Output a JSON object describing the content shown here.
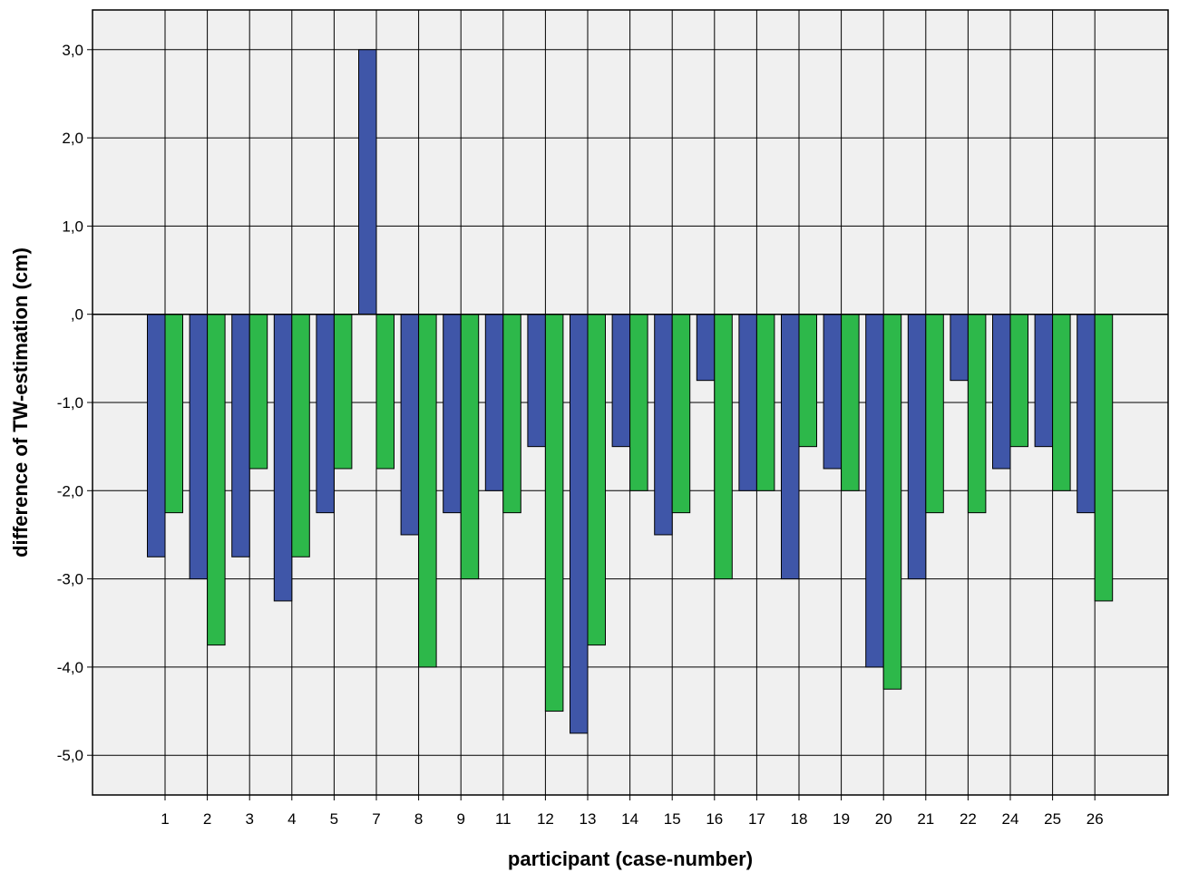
{
  "chart_data": {
    "type": "bar",
    "xlabel": "participant (case-number)",
    "ylabel": "difference of TW-estimation (cm)",
    "categories": [
      "1",
      "2",
      "3",
      "4",
      "5",
      "7",
      "8",
      "9",
      "11",
      "12",
      "13",
      "14",
      "15",
      "16",
      "17",
      "18",
      "19",
      "20",
      "21",
      "22",
      "24",
      "25",
      "26"
    ],
    "series": [
      {
        "color": "#3f56a8",
        "values": [
          -2.75,
          -3.0,
          -2.75,
          -3.25,
          -2.25,
          3.0,
          -2.5,
          -2.25,
          -2.0,
          -1.5,
          -4.75,
          -1.5,
          -2.5,
          -0.75,
          -2.0,
          -3.0,
          -1.75,
          -4.0,
          -3.0,
          -0.75,
          -1.75,
          -1.5,
          -2.25
        ]
      },
      {
        "color": "#2db84a",
        "values": [
          -2.25,
          -3.75,
          -1.75,
          -2.75,
          -1.75,
          -1.75,
          -4.0,
          -3.0,
          -2.25,
          -4.5,
          -3.75,
          -2.0,
          -2.25,
          -3.0,
          -2.0,
          -1.5,
          -2.0,
          -4.25,
          -2.25,
          -2.25,
          -1.5,
          -2.0,
          -3.25
        ]
      }
    ],
    "ylim": [
      -5.45,
      3.45
    ],
    "yticks": [
      3.0,
      2.0,
      1.0,
      0.0,
      -1.0,
      -2.0,
      -3.0,
      -4.0,
      -5.0
    ],
    "ytick_labels": [
      "3,0",
      "2,0",
      "1,0",
      ",0",
      "-1,0",
      "-2,0",
      "-3,0",
      "-4,0",
      "-5,0"
    ],
    "grid": true,
    "legend": "none",
    "plot_background": "#f0f0f0"
  }
}
